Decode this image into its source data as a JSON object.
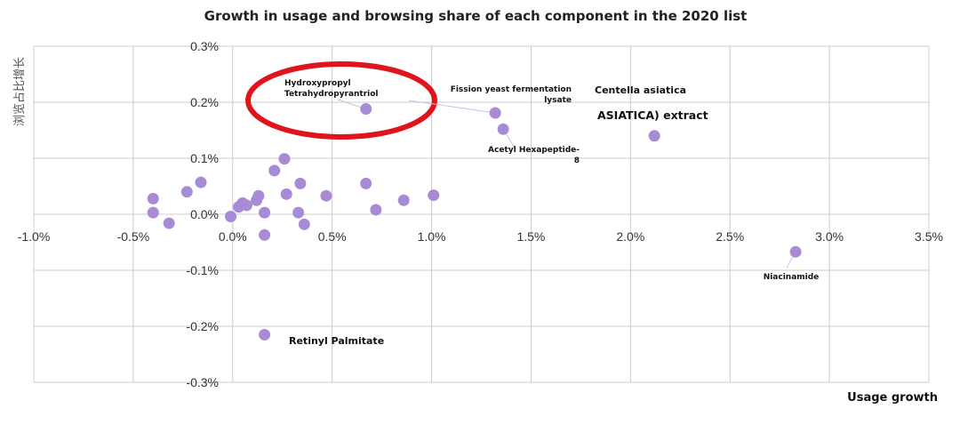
{
  "chart_data": {
    "type": "scatter",
    "title": "Growth in usage and browsing share of each component in the 2020 list",
    "xlabel": "Usage growth",
    "ylabel": "浏览占比增长",
    "xlim": [
      -1.0,
      3.5
    ],
    "ylim": [
      -0.3,
      0.3
    ],
    "x_ticks": [
      "-1.0%",
      "-0.5%",
      "0.0%",
      "0.5%",
      "1.0%",
      "1.5%",
      "2.0%",
      "2.5%",
      "3.0%",
      "3.5%"
    ],
    "y_ticks": [
      "0.3%",
      "0.2%",
      "0.1%",
      "0.0%",
      "-0.1%",
      "-0.2%",
      "-0.3%"
    ],
    "grid": true,
    "point_color": "#a78bd6",
    "highlight_color": "#e0141b",
    "points": [
      {
        "x": -0.4,
        "y": 0.028
      },
      {
        "x": -0.4,
        "y": 0.003
      },
      {
        "x": -0.32,
        "y": -0.016
      },
      {
        "x": -0.23,
        "y": 0.04
      },
      {
        "x": -0.16,
        "y": 0.057
      },
      {
        "x": -0.01,
        "y": -0.004
      },
      {
        "x": 0.03,
        "y": 0.013
      },
      {
        "x": 0.05,
        "y": 0.02
      },
      {
        "x": 0.07,
        "y": 0.016
      },
      {
        "x": 0.12,
        "y": 0.025
      },
      {
        "x": 0.13,
        "y": 0.033
      },
      {
        "x": 0.16,
        "y": 0.003
      },
      {
        "x": 0.16,
        "y": -0.037
      },
      {
        "x": 0.21,
        "y": 0.078
      },
      {
        "x": 0.26,
        "y": 0.099
      },
      {
        "x": 0.27,
        "y": 0.036
      },
      {
        "x": 0.33,
        "y": 0.003
      },
      {
        "x": 0.34,
        "y": 0.055
      },
      {
        "x": 0.36,
        "y": -0.018
      },
      {
        "x": 0.47,
        "y": 0.033
      },
      {
        "x": 0.67,
        "y": 0.055
      },
      {
        "x": 0.72,
        "y": 0.008
      },
      {
        "x": 0.86,
        "y": 0.025
      },
      {
        "x": 1.01,
        "y": 0.034
      },
      {
        "x": 0.67,
        "y": 0.188
      },
      {
        "x": 1.32,
        "y": 0.181
      },
      {
        "x": 1.36,
        "y": 0.152
      },
      {
        "x": 2.12,
        "y": 0.14
      },
      {
        "x": 2.83,
        "y": -0.067
      },
      {
        "x": 0.16,
        "y": -0.215
      }
    ],
    "annotations": [
      {
        "lines": [
          "Hydroxypropyl",
          "Tetrahydropyrantriol"
        ],
        "size": "sm"
      },
      {
        "lines": [
          "Fission yeast fermentation",
          "lysate"
        ],
        "size": "sm"
      },
      {
        "lines": [
          "Centella asiatica"
        ],
        "size": "md"
      },
      {
        "lines": [
          "ASIATICA) extract"
        ],
        "size": "lg"
      },
      {
        "lines": [
          "Acetyl Hexapeptide-",
          "8"
        ],
        "size": "sm"
      },
      {
        "lines": [
          "Niacinamide"
        ],
        "size": "sm"
      },
      {
        "lines": [
          "Retinyl Palmitate"
        ],
        "size": "md"
      }
    ]
  }
}
